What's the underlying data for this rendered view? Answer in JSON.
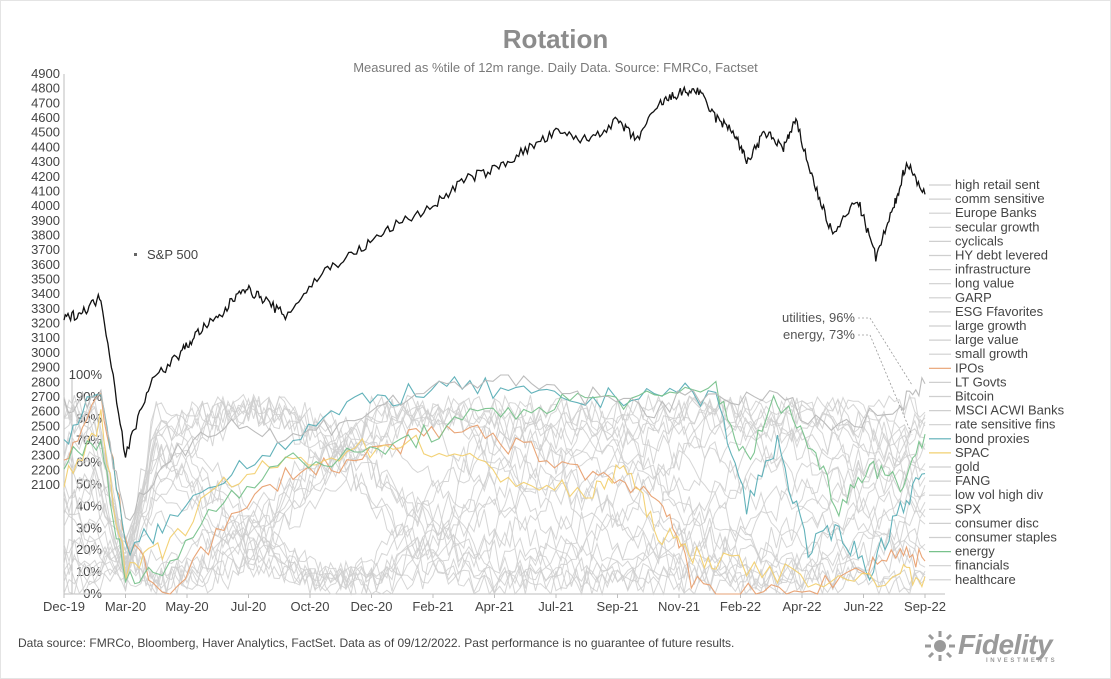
{
  "chart_data": {
    "type": "line",
    "title": "Rotation",
    "subtitle": "Measured as %tile of 12m range.  Daily Data. Source: FMRCo, Factset",
    "x_ticks": [
      "Dec-19",
      "Mar-20",
      "May-20",
      "Jul-20",
      "Oct-20",
      "Dec-20",
      "Feb-21",
      "Apr-21",
      "Jul-21",
      "Sep-21",
      "Nov-21",
      "Feb-22",
      "Apr-22",
      "Jun-22",
      "Sep-22"
    ],
    "left_axis": {
      "label_ticks": [
        "4900",
        "4800",
        "4700",
        "4600",
        "4500",
        "4400",
        "4300",
        "4200",
        "4100",
        "4000",
        "3900",
        "3800",
        "3700",
        "3600",
        "3500",
        "3400",
        "3300",
        "3200",
        "3100",
        "3000",
        "2900",
        "2800",
        "2700",
        "2600",
        "2500",
        "2400",
        "2300",
        "2200",
        "2100"
      ],
      "range": [
        2100,
        4900
      ]
    },
    "pct_axis": {
      "label_ticks": [
        "100%",
        "90%",
        "80%",
        "70%",
        "60%",
        "50%",
        "40%",
        "30%",
        "20%",
        "10%",
        "0%"
      ],
      "range": [
        0,
        100
      ]
    },
    "sp500": {
      "name": "S&P 500",
      "color": "#111111",
      "x": [
        0,
        0.3,
        0.6,
        1,
        1.4,
        1.9,
        2.2,
        2.55,
        2.9,
        3.2,
        3.6,
        4.2,
        4.8,
        5.3,
        6,
        6.5,
        7,
        7.5,
        8,
        8.5,
        9,
        9.3,
        9.7,
        10,
        10.3,
        10.6,
        10.9,
        11.1,
        11.4,
        11.7,
        11.9,
        12.2,
        12.5,
        12.9,
        13.2,
        13.5,
        13.7,
        14
      ],
      "y": [
        3230,
        3280,
        3380,
        2300,
        2800,
        3000,
        3150,
        3250,
        3450,
        3380,
        3250,
        3550,
        3700,
        3850,
        4000,
        4180,
        4250,
        4380,
        4500,
        4450,
        4580,
        4450,
        4700,
        4770,
        4790,
        4600,
        4500,
        4300,
        4500,
        4400,
        4580,
        4150,
        3800,
        4050,
        3650,
        4000,
        4300,
        4080
      ]
    },
    "legend": [
      "high retail sent",
      "comm sensitive",
      "Europe Banks",
      "secular growth",
      "cyclicals",
      "HY debt levered",
      "infrastructure",
      "long value",
      "GARP",
      "ESG Ffavorites",
      "large growth",
      "large value",
      "small growth",
      "IPOs",
      "LT Govts",
      "Bitcoin",
      "MSCI ACWI Banks",
      "rate sensitive fins",
      "bond proxies",
      "SPAC",
      "gold",
      "FANG",
      "low vol high div",
      "SPX",
      "consumer disc",
      "consumer staples",
      "energy",
      "financials",
      "healthcare"
    ],
    "highlighted_series": [
      {
        "name": "IPOs",
        "color": "#e8a070",
        "x": [
          0,
          0.6,
          1,
          1.6,
          2.6,
          3.6,
          4.6,
          5.6,
          6.6,
          7.6,
          8.6,
          9.3,
          9.8,
          10.2,
          11,
          12,
          13,
          13.6,
          14
        ],
        "y": [
          60,
          90,
          25,
          0,
          30,
          55,
          60,
          70,
          75,
          65,
          55,
          50,
          40,
          5,
          0,
          0,
          12,
          20,
          15
        ]
      },
      {
        "name": "bond proxies",
        "color": "#5aaeb6",
        "x": [
          0,
          0.6,
          1,
          1.6,
          2.6,
          3.6,
          4.6,
          5.6,
          6.6,
          7.6,
          8.6,
          9.6,
          10.6,
          11.1,
          11.6,
          12.1,
          12.6,
          13.1,
          13.6,
          14
        ],
        "y": [
          70,
          95,
          20,
          30,
          55,
          70,
          85,
          92,
          95,
          90,
          88,
          93,
          90,
          40,
          70,
          20,
          30,
          10,
          40,
          55
        ]
      },
      {
        "name": "SPAC",
        "color": "#f2d070",
        "x": [
          0,
          0.6,
          1,
          1.6,
          2.6,
          3.6,
          4.6,
          5.6,
          6.6,
          7.6,
          8.6,
          9.1,
          9.6,
          10.1,
          10.6,
          11.6,
          12.6,
          13.6,
          14
        ],
        "y": [
          50,
          80,
          10,
          20,
          50,
          60,
          65,
          70,
          60,
          50,
          45,
          60,
          30,
          20,
          15,
          10,
          5,
          10,
          8
        ]
      },
      {
        "name": "energy",
        "color": "#78c28c",
        "x": [
          0,
          0.6,
          1,
          1.6,
          2.6,
          3.6,
          4.6,
          5.6,
          6.6,
          7.6,
          8.6,
          9.6,
          10.6,
          11.1,
          11.6,
          12.1,
          12.6,
          13.1,
          13.6,
          14
        ],
        "y": [
          60,
          70,
          5,
          10,
          45,
          60,
          62,
          70,
          80,
          85,
          90,
          88,
          95,
          60,
          90,
          70,
          40,
          60,
          50,
          73
        ]
      },
      {
        "name": "utilities",
        "color": "#b8b8b8",
        "x": [
          0,
          0.6,
          1,
          1.6,
          2.6,
          3.6,
          4.6,
          5.6,
          6.6,
          7.6,
          8.6,
          9.6,
          10.6,
          11.6,
          12.6,
          13.6,
          14
        ],
        "y": [
          85,
          92,
          30,
          60,
          80,
          70,
          80,
          90,
          98,
          95,
          90,
          85,
          92,
          88,
          75,
          85,
          96
        ]
      }
    ],
    "background_series_note": "Additional light-grey series for the remaining legend entries",
    "annotations": [
      {
        "text": "utilities, 96%"
      },
      {
        "text": "energy, 73%"
      }
    ],
    "sp500_label": "S&P 500",
    "grid": false
  },
  "footer": {
    "text": "Data source: FMRCo, Bloomberg, Haver Analytics, FactSet. Data as of 09/12/2022. Past performance is no guarantee of future results."
  },
  "brand": {
    "logo_alt": "Fidelity Investments logo",
    "color": "#9a9a9a"
  }
}
